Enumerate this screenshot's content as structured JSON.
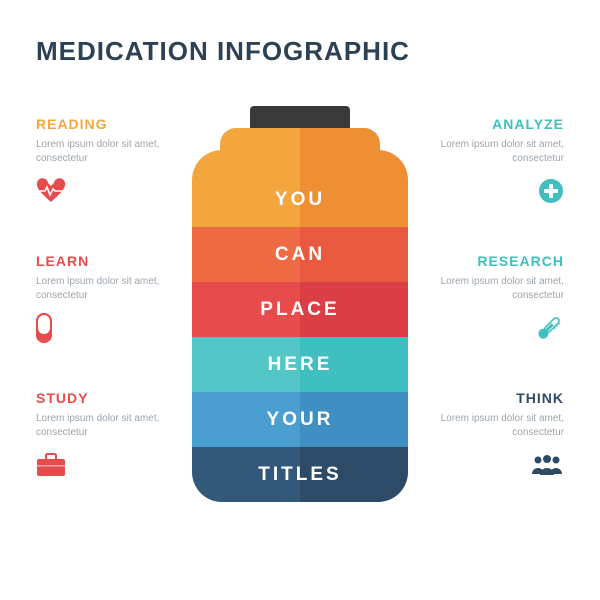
{
  "title": "MEDICATION INFOGRAPHIC",
  "title_color": "#2d4154",
  "title_fontsize": 26,
  "body_text": "Lorem ipsum dolor sit amet, consectetur",
  "body_color": "#9aa4ad",
  "body_fontsize": 10,
  "item_title_fontsize": 14,
  "left_items": [
    {
      "title": "READING",
      "color": "#f4a63e",
      "icon": "heart"
    },
    {
      "title": "LEARN",
      "color": "#e84b4b",
      "icon": "pill"
    },
    {
      "title": "STUDY",
      "color": "#e84b4b",
      "icon": "briefcase"
    }
  ],
  "right_items": [
    {
      "title": "ANALYZE",
      "color": "#3fbfbf",
      "icon": "plus"
    },
    {
      "title": "RESEARCH",
      "color": "#3fbfbf",
      "icon": "thermometer"
    },
    {
      "title": "THINK",
      "color": "#2d4a66",
      "icon": "people"
    }
  ],
  "jar": {
    "cap_color": "#3a3a3a",
    "cap_width": 100,
    "cap_height": 22,
    "body_width": 216,
    "body_radius": 30,
    "stripe_height": 55,
    "label_color": "#ffffff",
    "label_fontsize": 19,
    "stripes": [
      {
        "label": "YOU",
        "left": "#f4a63e",
        "right": "#ef8f34"
      },
      {
        "label": "CAN",
        "left": "#ef6b45",
        "right": "#e75a3f"
      },
      {
        "label": "PLACE",
        "left": "#e84b4b",
        "right": "#db3e44"
      },
      {
        "label": "HERE",
        "left": "#55c6c6",
        "right": "#3fbfbf"
      },
      {
        "label": "YOUR",
        "left": "#4a9fd0",
        "right": "#3f8fc2"
      },
      {
        "label": "TITLES",
        "left": "#33597a",
        "right": "#2d4a66"
      }
    ]
  }
}
